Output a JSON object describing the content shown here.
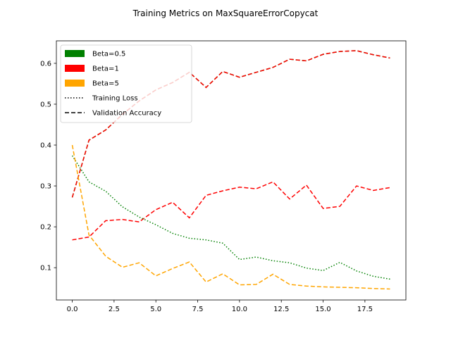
{
  "chart_data": {
    "type": "line",
    "title": "Training Metrics on MaxSquareErrorCopycat",
    "xlabel": "",
    "ylabel": "",
    "xlim": [
      -0.95,
      19.95
    ],
    "ylim": [
      0.021,
      0.655
    ],
    "xticks": [
      0.0,
      2.5,
      5.0,
      7.5,
      10.0,
      12.5,
      15.0,
      17.5
    ],
    "xtick_labels": [
      "0.0",
      "2.5",
      "5.0",
      "7.5",
      "10.0",
      "12.5",
      "15.0",
      "17.5"
    ],
    "yticks": [
      0.1,
      0.2,
      0.3,
      0.4,
      0.5,
      0.6
    ],
    "ytick_labels": [
      "0.1",
      "0.2",
      "0.3",
      "0.4",
      "0.5",
      "0.6"
    ],
    "grid": false,
    "legend_position": "top-left",
    "legend": [
      {
        "label": "Beta=0.5",
        "kind": "patch",
        "color": "#008000"
      },
      {
        "label": "Beta=1",
        "kind": "patch",
        "color": "#ff0000"
      },
      {
        "label": "Beta=5",
        "kind": "patch",
        "color": "#ffa500"
      },
      {
        "label": "Training Loss",
        "kind": "line",
        "style": "dotted",
        "color": "#000000"
      },
      {
        "label": "Validation Accuracy",
        "kind": "line",
        "style": "dashed",
        "color": "#000000"
      }
    ],
    "x": [
      0,
      1,
      2,
      3,
      4,
      5,
      6,
      7,
      8,
      9,
      10,
      11,
      12,
      13,
      14,
      15,
      16,
      17,
      18,
      19
    ],
    "series": [
      {
        "beta": "Beta=0.5",
        "metric": "Validation Accuracy",
        "color": "#008000",
        "style": "dashed",
        "values": [
          0.272,
          0.412,
          0.437,
          0.475,
          0.508,
          0.535,
          0.553,
          0.578,
          0.541,
          0.58,
          0.566,
          0.578,
          0.59,
          0.61,
          0.606,
          0.622,
          0.629,
          0.631,
          0.621,
          0.613
        ]
      },
      {
        "beta": "Beta=1",
        "metric": "Validation Accuracy",
        "color": "#ff0000",
        "style": "dashed",
        "values": [
          0.272,
          0.412,
          0.437,
          0.475,
          0.508,
          0.535,
          0.553,
          0.578,
          0.541,
          0.58,
          0.566,
          0.578,
          0.59,
          0.61,
          0.606,
          0.622,
          0.629,
          0.631,
          0.621,
          0.613
        ]
      },
      {
        "beta": "Beta=1",
        "metric": "Training Loss",
        "color": "#ff0000",
        "style": "dashed",
        "values": [
          0.168,
          0.175,
          0.215,
          0.218,
          0.212,
          0.242,
          0.26,
          0.222,
          0.277,
          0.288,
          0.297,
          0.293,
          0.31,
          0.268,
          0.302,
          0.245,
          0.25,
          0.3,
          0.289,
          0.296
        ]
      },
      {
        "beta": "Beta=0.5",
        "metric": "Training Loss",
        "color": "#008000",
        "style": "dotted",
        "values": [
          0.374,
          0.31,
          0.287,
          0.249,
          0.224,
          0.205,
          0.184,
          0.172,
          0.168,
          0.16,
          0.12,
          0.126,
          0.117,
          0.112,
          0.099,
          0.093,
          0.113,
          0.092,
          0.079,
          0.072
        ]
      },
      {
        "beta": "Beta=5",
        "metric": "Training Loss",
        "color": "#ffa500",
        "style": "dashed",
        "values": [
          0.4,
          0.18,
          0.128,
          0.101,
          0.112,
          0.08,
          0.098,
          0.114,
          0.065,
          0.085,
          0.058,
          0.059,
          0.084,
          0.059,
          0.055,
          0.053,
          0.052,
          0.051,
          0.049,
          0.048
        ]
      }
    ]
  }
}
